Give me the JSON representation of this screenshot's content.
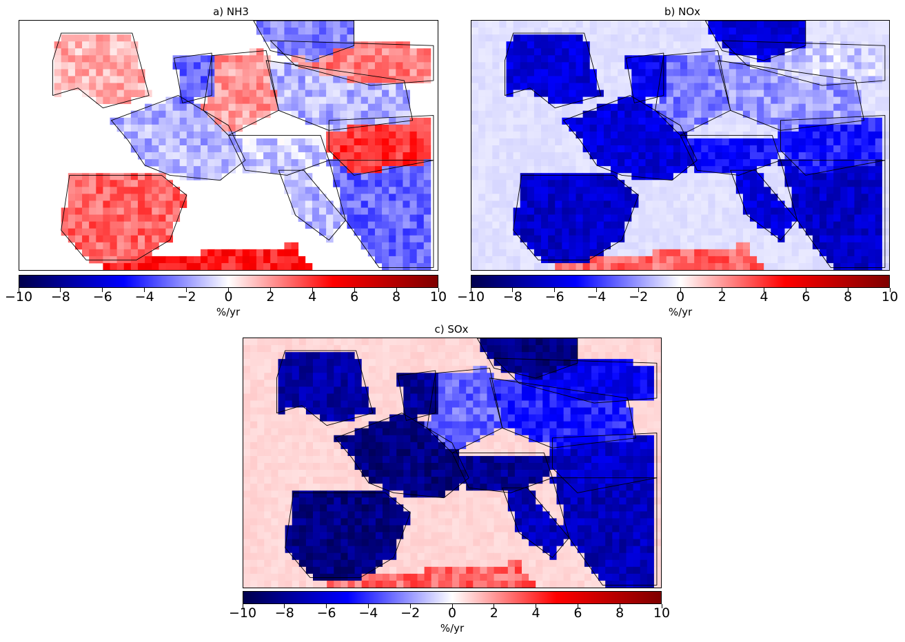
{
  "colormap": {
    "name": "seismic",
    "stops": [
      "#00004c",
      "#0000ff",
      "#ffffff",
      "#ff0000",
      "#7f0000"
    ]
  },
  "panels": [
    {
      "id": "a",
      "title": "a) NH3",
      "unit": "%/yr",
      "range": [
        -10,
        10
      ],
      "ticks": [
        "−10",
        "−8",
        "−6",
        "−4",
        "−2",
        "0",
        "2",
        "4",
        "6",
        "8",
        "10"
      ],
      "regions": {
        "uk_ireland": 1.5,
        "france": -1.5,
        "iberia": 3.0,
        "germany": 2.0,
        "benelux": -3.0,
        "poland": -1.5,
        "alps_italy": -1.0,
        "italy_south": -1.5,
        "balkans": -3.0,
        "north_africa": 4.5,
        "scandinavia": -2.5,
        "baltic_east": 2.5,
        "hungary_romania": 4.0,
        "sea": null
      }
    },
    {
      "id": "b",
      "title": "b) NOx",
      "unit": "%/yr",
      "range": [
        -10,
        10
      ],
      "ticks": [
        "−10",
        "−8",
        "−6",
        "−4",
        "−2",
        "0",
        "2",
        "4",
        "6",
        "8",
        "10"
      ],
      "regions": {
        "uk_ireland": -6.0,
        "france": -6.0,
        "iberia": -6.5,
        "germany": -2.5,
        "benelux": -5.5,
        "poland": -2.0,
        "alps_italy": -5.0,
        "italy_south": -6.0,
        "balkans": -6.5,
        "north_africa": 3.0,
        "scandinavia": -6.0,
        "baltic_east": -1.0,
        "hungary_romania": -4.5,
        "sea": -0.6
      }
    },
    {
      "id": "c",
      "title": "c) SOx",
      "unit": "%/yr",
      "range": [
        -10,
        10
      ],
      "ticks": [
        "−10",
        "−8",
        "−6",
        "−4",
        "−2",
        "0",
        "2",
        "4",
        "6",
        "8",
        "10"
      ],
      "regions": {
        "uk_ireland": -7.5,
        "france": -8.5,
        "iberia": -8.5,
        "germany": -3.0,
        "benelux": -8.0,
        "poland": -4.5,
        "alps_italy": -8.0,
        "italy_south": -7.0,
        "balkans": -7.0,
        "north_africa": 3.0,
        "scandinavia": -8.5,
        "baltic_east": -5.5,
        "hungary_romania": -6.5,
        "sea": 0.8
      }
    }
  ]
}
